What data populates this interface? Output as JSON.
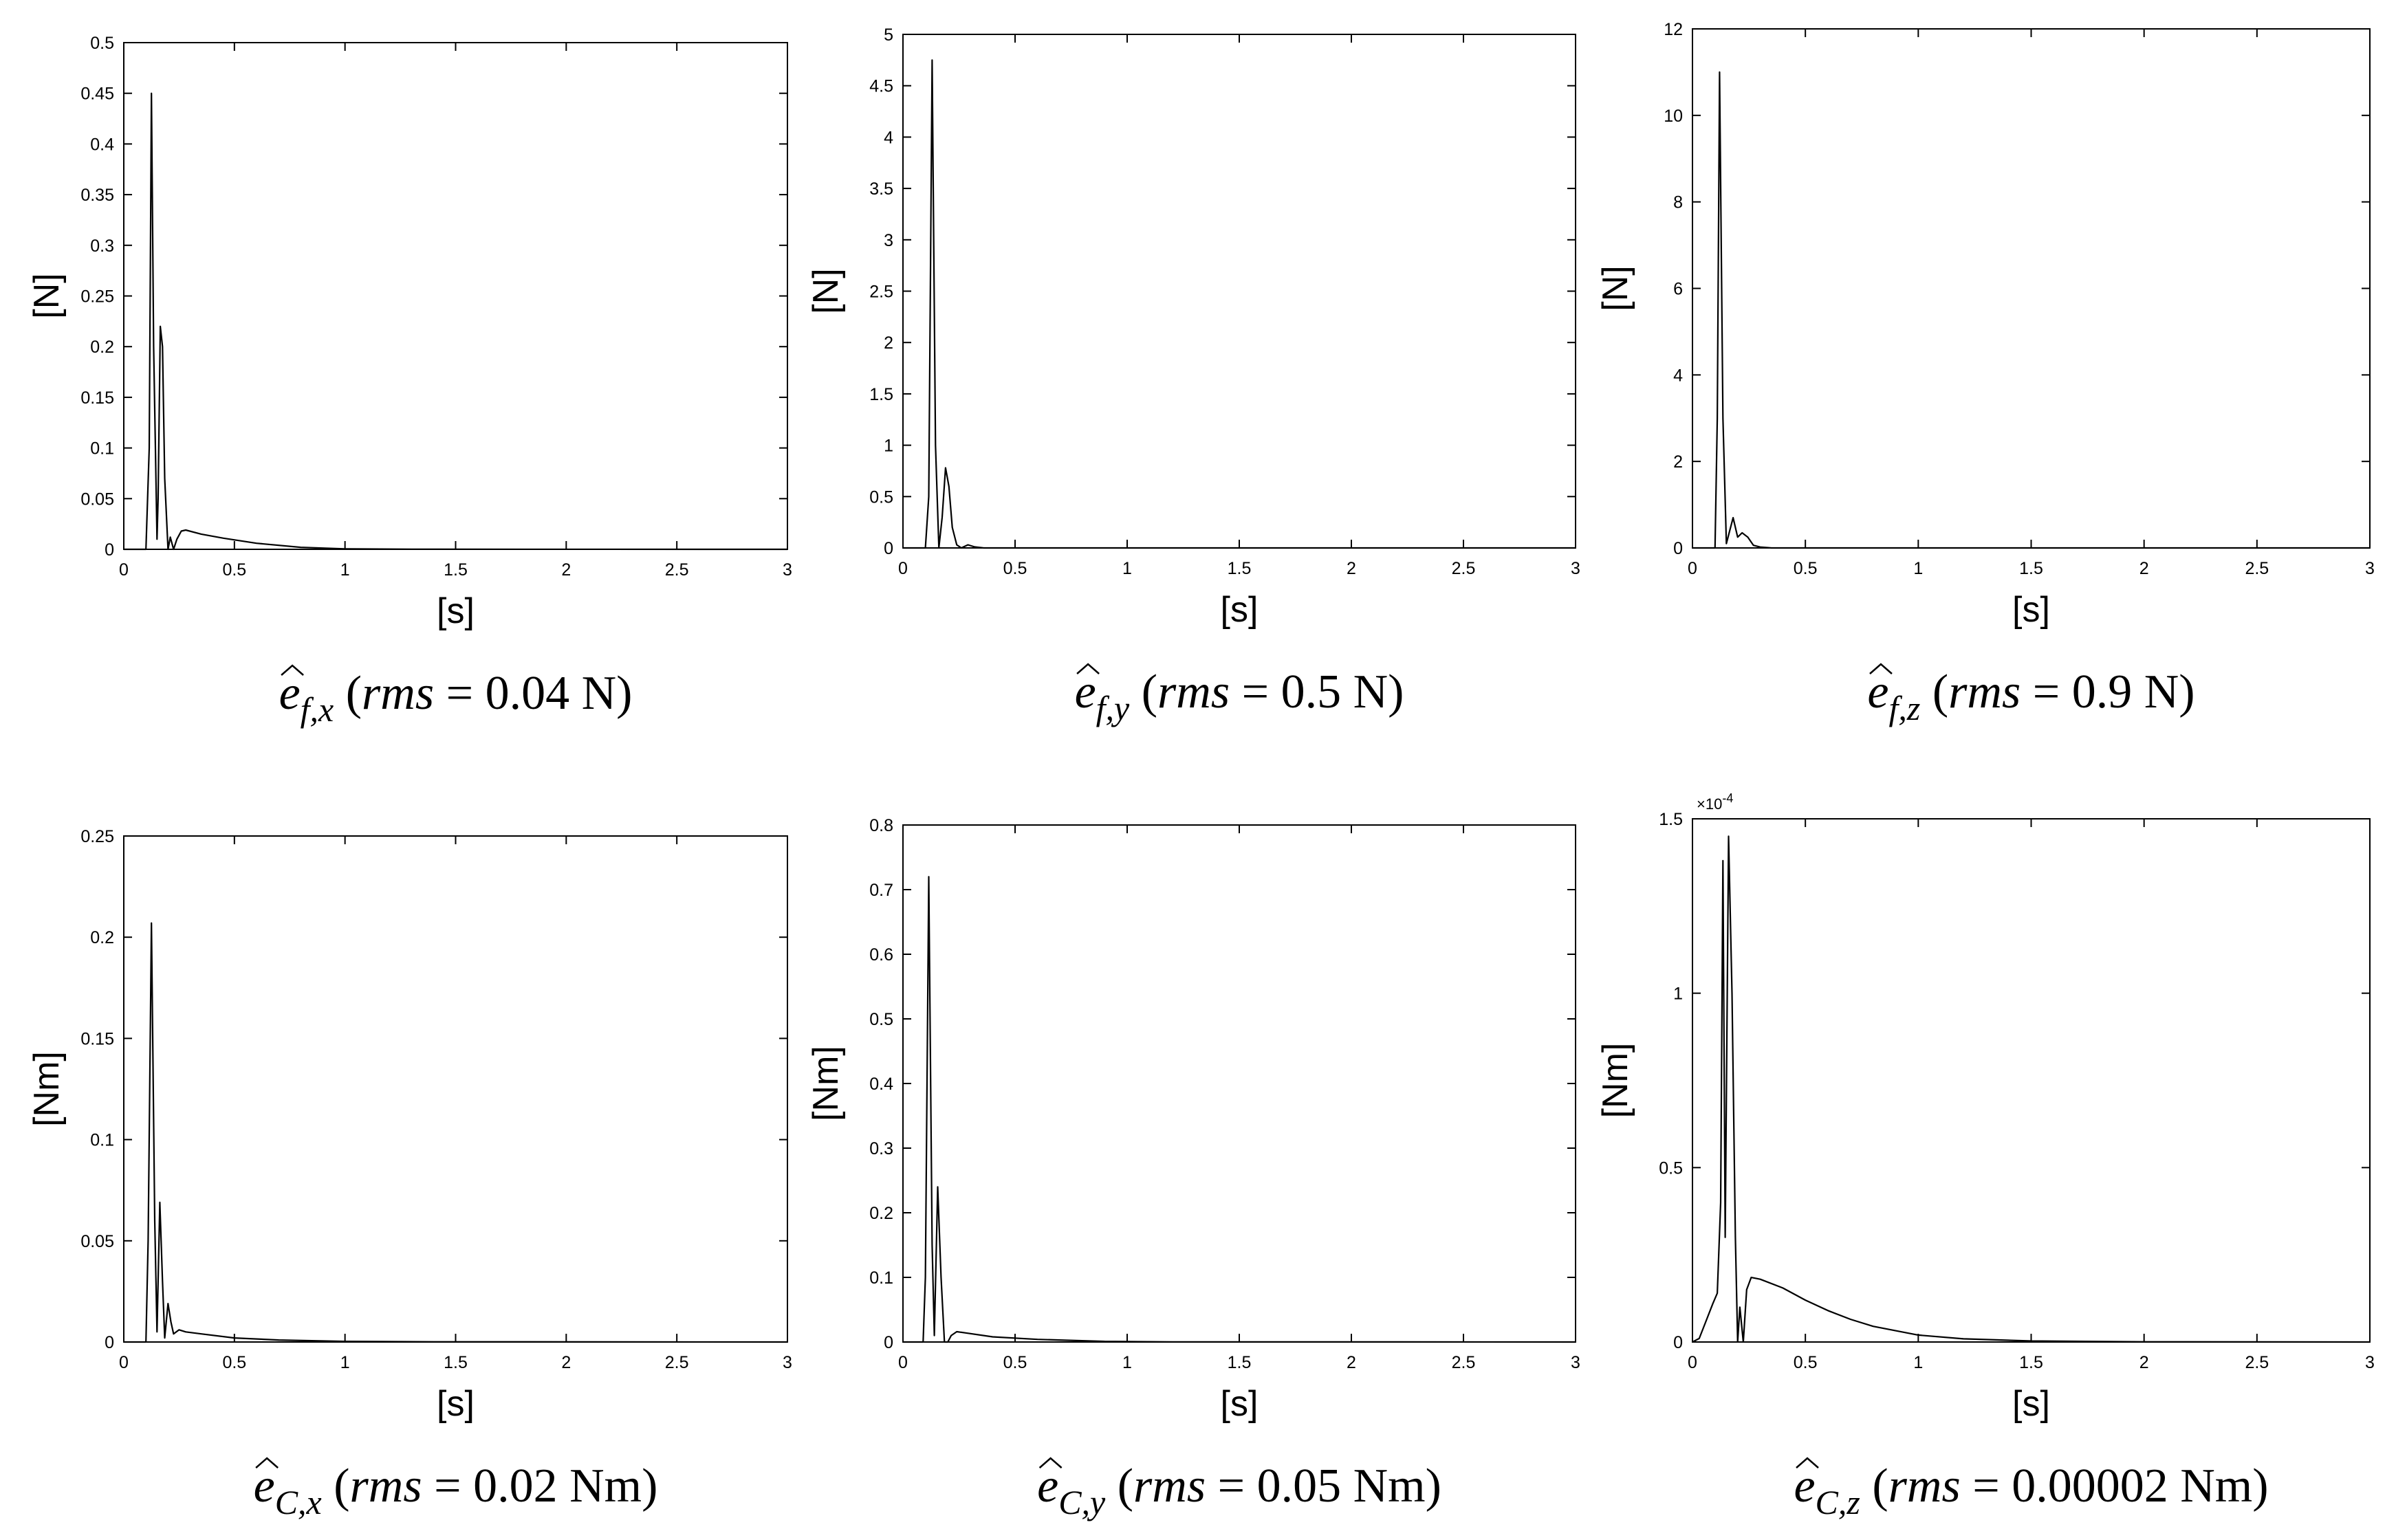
{
  "chart_data": [
    {
      "type": "line",
      "caption": {
        "sym": "e",
        "sub": "f,x",
        "rms": "rms",
        "eq": " = 0.04 N)"
      },
      "xlabel": "[s]",
      "ylabel": "[N]",
      "xlim": [
        0,
        3
      ],
      "ylim": [
        0,
        0.5
      ],
      "xticks": [
        "0",
        "0.5",
        "1",
        "1.5",
        "2",
        "2.5",
        "3"
      ],
      "yticks": [
        "0",
        "0.05",
        "0.1",
        "0.15",
        "0.2",
        "0.25",
        "0.3",
        "0.35",
        "0.4",
        "0.45",
        "0.5"
      ],
      "exponent": "",
      "series": [
        {
          "x": [
            0,
            0.1,
            0.115,
            0.125,
            0.135,
            0.15,
            0.155,
            0.165,
            0.175,
            0.185,
            0.2,
            0.21,
            0.225,
            0.24,
            0.26,
            0.28,
            0.35,
            0.45,
            0.6,
            0.8,
            1.0,
            1.3,
            3.0
          ],
          "y": [
            0,
            0,
            0.1,
            0.45,
            0.2,
            0.01,
            0.05,
            0.22,
            0.2,
            0.07,
            0.0,
            0.012,
            0.0,
            0.01,
            0.018,
            0.019,
            0.015,
            0.011,
            0.006,
            0.002,
            0.0005,
            0.0001,
            0
          ]
        }
      ]
    },
    {
      "type": "line",
      "caption": {
        "sym": "e",
        "sub": "f,y",
        "rms": "rms",
        "eq": " = 0.5 N)"
      },
      "xlabel": "[s]",
      "ylabel": "[N]",
      "xlim": [
        0,
        3
      ],
      "ylim": [
        0,
        5
      ],
      "xticks": [
        "0",
        "0.5",
        "1",
        "1.5",
        "2",
        "2.5",
        "3"
      ],
      "yticks": [
        "0",
        "0.5",
        "1",
        "1.5",
        "2",
        "2.5",
        "3",
        "3.5",
        "4",
        "4.5",
        "5"
      ],
      "exponent": "",
      "series": [
        {
          "x": [
            0,
            0.1,
            0.115,
            0.13,
            0.145,
            0.16,
            0.175,
            0.19,
            0.205,
            0.22,
            0.24,
            0.26,
            0.29,
            0.32,
            0.36,
            3.0
          ],
          "y": [
            0,
            0,
            0.5,
            4.75,
            1.0,
            0.0,
            0.3,
            0.78,
            0.6,
            0.2,
            0.03,
            0.0,
            0.03,
            0.01,
            0,
            0
          ]
        }
      ]
    },
    {
      "type": "line",
      "caption": {
        "sym": "e",
        "sub": "f,z",
        "rms": "rms",
        "eq": " = 0.9 N)"
      },
      "xlabel": "[s]",
      "ylabel": "[N]",
      "xlim": [
        0,
        3
      ],
      "ylim": [
        0,
        12
      ],
      "xticks": [
        "0",
        "0.5",
        "1",
        "1.5",
        "2",
        "2.5",
        "3"
      ],
      "yticks": [
        "0",
        "2",
        "4",
        "6",
        "8",
        "10",
        "12"
      ],
      "exponent": "",
      "series": [
        {
          "x": [
            0,
            0.1,
            0.11,
            0.12,
            0.135,
            0.15,
            0.165,
            0.18,
            0.2,
            0.22,
            0.245,
            0.27,
            0.3,
            0.35,
            3.0
          ],
          "y": [
            0,
            0,
            3.0,
            11.0,
            3.0,
            0.1,
            0.4,
            0.7,
            0.25,
            0.35,
            0.25,
            0.06,
            0.02,
            0,
            0
          ]
        }
      ]
    },
    {
      "type": "line",
      "caption": {
        "sym": "e",
        "sub": "C,x",
        "rms": "rms",
        "eq": " = 0.02 Nm)"
      },
      "xlabel": "[s]",
      "ylabel": "[Nm]",
      "xlim": [
        0,
        3
      ],
      "ylim": [
        0,
        0.25
      ],
      "xticks": [
        "0",
        "0.5",
        "1",
        "1.5",
        "2",
        "2.5",
        "3"
      ],
      "yticks": [
        "0",
        "0.05",
        "0.1",
        "0.15",
        "0.2",
        "0.25"
      ],
      "exponent": "",
      "series": [
        {
          "x": [
            0,
            0.1,
            0.11,
            0.125,
            0.14,
            0.15,
            0.163,
            0.175,
            0.185,
            0.2,
            0.213,
            0.225,
            0.25,
            0.28,
            0.35,
            0.5,
            0.7,
            1.0,
            1.4,
            3.0
          ],
          "y": [
            0,
            0,
            0.05,
            0.207,
            0.06,
            0.005,
            0.069,
            0.03,
            0.002,
            0.019,
            0.01,
            0.004,
            0.006,
            0.005,
            0.004,
            0.002,
            0.001,
            0.0003,
            0.0001,
            0
          ]
        }
      ]
    },
    {
      "type": "line",
      "caption": {
        "sym": "e",
        "sub": "C,y",
        "rms": "rms",
        "eq": " = 0.05 Nm)"
      },
      "xlabel": "[s]",
      "ylabel": "[Nm]",
      "xlim": [
        0,
        3
      ],
      "ylim": [
        0,
        0.8
      ],
      "xticks": [
        "0",
        "0.5",
        "1",
        "1.5",
        "2",
        "2.5",
        "3"
      ],
      "yticks": [
        "0",
        "0.1",
        "0.2",
        "0.3",
        "0.4",
        "0.5",
        "0.6",
        "0.7",
        "0.8"
      ],
      "exponent": "",
      "series": [
        {
          "x": [
            0,
            0.09,
            0.1,
            0.115,
            0.13,
            0.14,
            0.155,
            0.17,
            0.185,
            0.2,
            0.215,
            0.24,
            0.28,
            0.4,
            0.6,
            0.9,
            1.2,
            3.0
          ],
          "y": [
            0,
            0,
            0.1,
            0.72,
            0.15,
            0.01,
            0.24,
            0.1,
            0.0,
            0.0,
            0.01,
            0.016,
            0.014,
            0.008,
            0.004,
            0.001,
            0.0002,
            0
          ]
        }
      ]
    },
    {
      "type": "line",
      "caption": {
        "sym": "e",
        "sub": "C,z",
        "rms": "rms",
        "eq": " = 0.00002 Nm)"
      },
      "xlabel": "[s]",
      "ylabel": "[Nm]",
      "xlim": [
        0,
        3
      ],
      "ylim": [
        0,
        1.5
      ],
      "xticks": [
        "0",
        "0.5",
        "1",
        "1.5",
        "2",
        "2.5",
        "3"
      ],
      "yticks": [
        "0",
        "0.5",
        "1",
        "1.5"
      ],
      "exponent": "×10-4",
      "series": [
        {
          "x": [
            0,
            0.03,
            0.06,
            0.09,
            0.11,
            0.125,
            0.135,
            0.145,
            0.16,
            0.175,
            0.19,
            0.2,
            0.21,
            0.225,
            0.24,
            0.26,
            0.3,
            0.4,
            0.5,
            0.6,
            0.7,
            0.8,
            1.0,
            1.2,
            1.5,
            2.0,
            3.0
          ],
          "y": [
            0,
            0.01,
            0.06,
            0.11,
            0.14,
            0.4,
            1.38,
            0.3,
            1.45,
            1.0,
            0.3,
            0.0,
            0.1,
            0.0,
            0.15,
            0.185,
            0.18,
            0.155,
            0.12,
            0.09,
            0.065,
            0.045,
            0.02,
            0.009,
            0.003,
            0.0005,
            0
          ]
        }
      ]
    }
  ]
}
